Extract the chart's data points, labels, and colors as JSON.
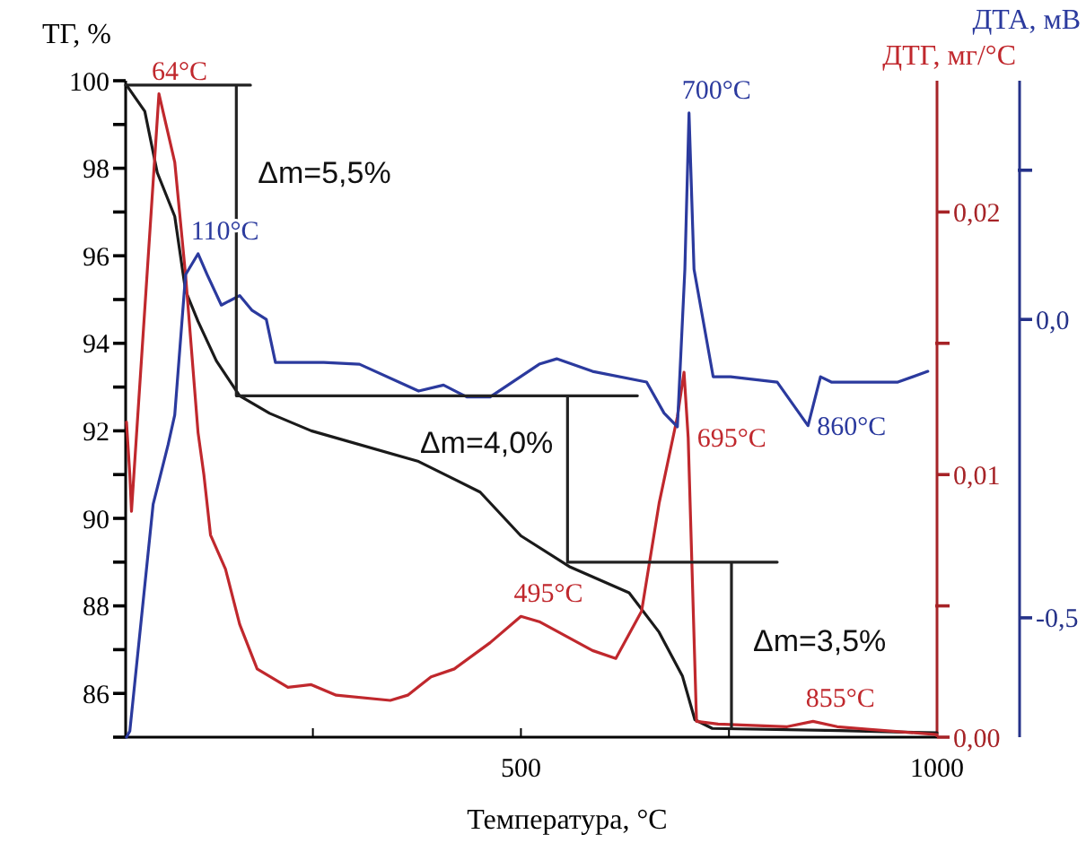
{
  "chart_data": {
    "type": "line",
    "xlabel": "Температура, °C",
    "ylabel": "ТГ, %",
    "y2label": "ДТГ, мг/°C",
    "y3label": "ДТА, мВ",
    "xlim": [
      25,
      1000
    ],
    "xticks": [
      {
        "value": 250,
        "label": null
      },
      500,
      {
        "value": 750,
        "label": null
      },
      1000
    ],
    "ylim": [
      85,
      100
    ],
    "yticks": [
      {
        "value": 85,
        "label": null
      },
      86,
      {
        "value": 87,
        "label": null
      },
      88,
      {
        "value": 89,
        "label": null
      },
      90,
      {
        "value": 91,
        "label": null
      },
      92,
      {
        "value": 93,
        "label": null
      },
      94,
      {
        "value": 95,
        "label": null
      },
      96,
      {
        "value": 97,
        "label": null
      },
      98,
      {
        "value": 99,
        "label": null
      },
      100
    ],
    "y2lim": [
      0,
      0.025
    ],
    "y2ticks": [
      {
        "value": 0,
        "label": "0,00"
      },
      {
        "value": 0.005,
        "label": null
      },
      {
        "value": 0.01,
        "label": "0,01"
      },
      {
        "value": 0.015,
        "label": null
      },
      {
        "value": 0.02,
        "label": "0,02"
      }
    ],
    "y3lim": [
      -0.7,
      0.4
    ],
    "y3ticks": [
      {
        "value": -0.5,
        "label": "-0,5"
      },
      {
        "value": 0,
        "label": "0,0"
      },
      {
        "value": 0.25,
        "label": null
      }
    ],
    "grid": false,
    "marker": "none",
    "line_style": "solid",
    "series": [
      {
        "color": "#1a1a1a",
        "x": [
          26,
          48,
          63,
          84,
          97,
          112,
          134,
          162,
          198,
          248,
          377,
          451,
          500,
          558,
          630,
          666,
          694,
          709,
          730,
          882,
          1000
        ],
        "values": [
          99.9,
          99.3,
          97.9,
          96.9,
          95.2,
          94.5,
          93.6,
          92.8,
          92.4,
          92.0,
          91.3,
          90.6,
          89.6,
          88.9,
          88.3,
          87.4,
          86.4,
          85.4,
          85.2,
          85.15,
          85.1
        ]
      },
      {
        "color": "#c0282d",
        "axis": "y2",
        "x": [
          26,
          30,
          32,
          65,
          84,
          97,
          112,
          119,
          127,
          145,
          162,
          183,
          220,
          248,
          278,
          343,
          364,
          392,
          420,
          463,
          500,
          522,
          586,
          614,
          645,
          666,
          688,
          696,
          701,
          711,
          737,
          820,
          851,
          880,
          916,
          1000
        ],
        "values": [
          0.012,
          0.01,
          0.0086,
          0.0245,
          0.0219,
          0.0176,
          0.0116,
          0.01,
          0.0077,
          0.0064,
          0.0043,
          0.0026,
          0.0019,
          0.002,
          0.0016,
          0.0014,
          0.0016,
          0.0023,
          0.0026,
          0.0036,
          0.0046,
          0.0044,
          0.0033,
          0.003,
          0.0048,
          0.0089,
          0.0122,
          0.0139,
          0.0114,
          0.0006,
          0.0005,
          0.0004,
          0.0006,
          0.0004,
          0.0003,
          0.0001
        ]
      },
      {
        "color": "#2b3a9e",
        "axis": "y3",
        "x": [
          26,
          30,
          58,
          76,
          84,
          97,
          112,
          123,
          140,
          162,
          177,
          194,
          205,
          263,
          306,
          377,
          407,
          435,
          463,
          522,
          543,
          586,
          651,
          672,
          688,
          697,
          702,
          708,
          731,
          752,
          808,
          845,
          860,
          873,
          895,
          953,
          989
        ],
        "values": [
          -0.7,
          -0.69,
          -0.31,
          -0.21,
          -0.16,
          0.075,
          0.11,
          0.075,
          0.024,
          0.04,
          0.015,
          0,
          -0.072,
          -0.072,
          -0.075,
          -0.12,
          -0.11,
          -0.13,
          -0.13,
          -0.075,
          -0.066,
          -0.087,
          -0.105,
          -0.157,
          -0.18,
          0.084,
          0.346,
          0.084,
          -0.096,
          -0.096,
          -0.105,
          -0.178,
          -0.096,
          -0.105,
          -0.105,
          -0.105,
          -0.087
        ]
      },
      {
        "color": "#222222",
        "x": [
          25,
          175,
          158,
          158,
          640,
          556,
          556,
          808,
          753,
          753
        ],
        "values": [
          99.9,
          99.9,
          99.9,
          92.8,
          92.8,
          92.8,
          89.0,
          89.0,
          89.0,
          85.2
        ]
      }
    ],
    "annotations": [
      "Δm=5,5%",
      "Δm=4,0%",
      "Δm=3,5%",
      {
        "text": "64°C",
        "x": 65,
        "y": 99.7
      },
      {
        "text": "495°C",
        "x": 500,
        "y": 87.76
      },
      {
        "text": "695°C",
        "x": 701,
        "y": 91.84
      },
      {
        "text": "855°C",
        "x": 851,
        "y": 85.36
      },
      {
        "text": "110°C",
        "x": 112,
        "y": 96.05
      },
      {
        "text": "700°C",
        "x": 702,
        "y": 99.26
      },
      {
        "text": "860°C",
        "x": 845,
        "y": 92.12
      }
    ]
  }
}
